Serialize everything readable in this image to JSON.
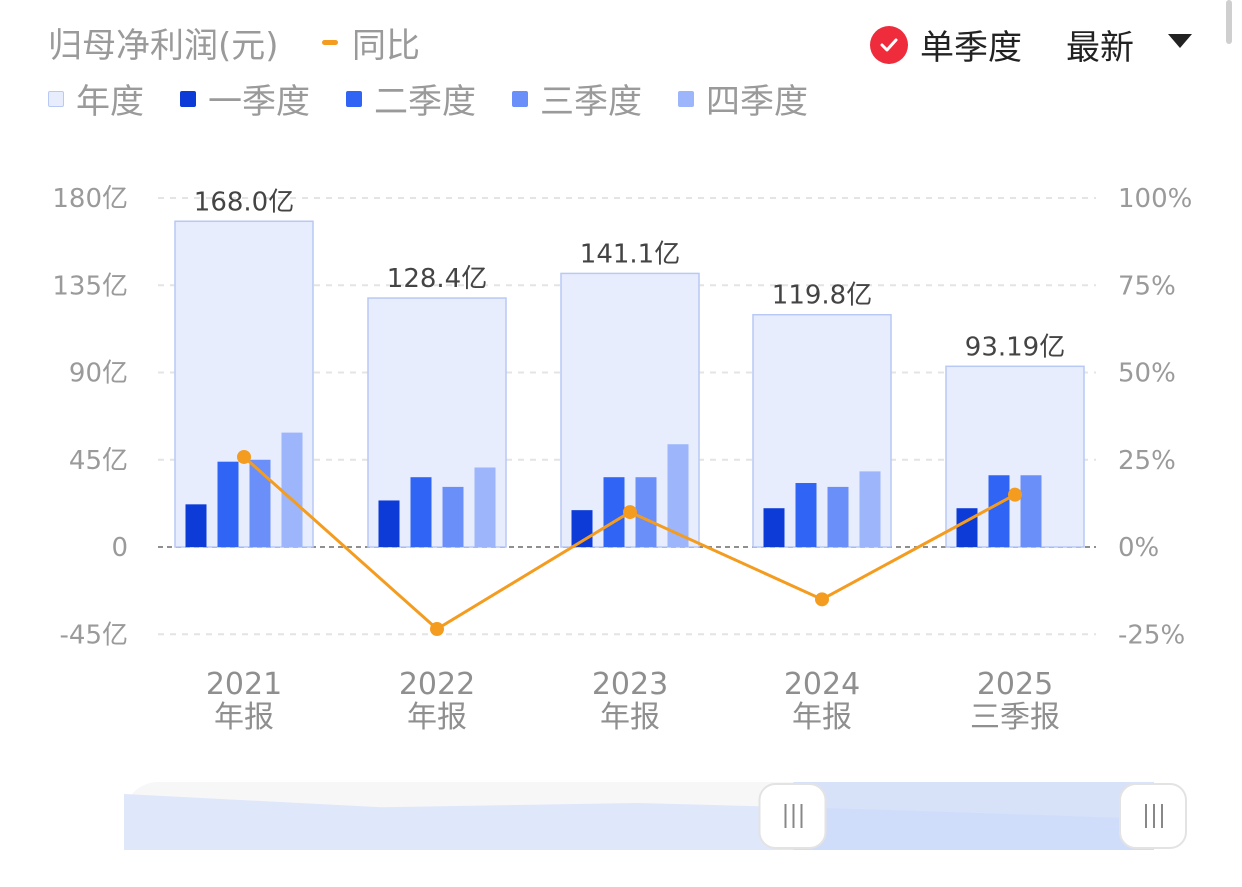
{
  "header": {
    "title": "归母净利润(元)",
    "yoy_label": "同比",
    "single_quarter_label": "单季度",
    "single_quarter_checked": true,
    "period_select": "最新"
  },
  "legend": [
    {
      "label": "年度",
      "color": "#e8edfd"
    },
    {
      "label": "一季度",
      "color": "#0c3bd8"
    },
    {
      "label": "二季度",
      "color": "#2f64f5"
    },
    {
      "label": "三季度",
      "color": "#6a8ff8"
    },
    {
      "label": "四季度",
      "color": "#9cb5fb"
    }
  ],
  "chart_data": {
    "type": "bar",
    "categories": [
      {
        "year": "2021",
        "period": "年报"
      },
      {
        "year": "2022",
        "period": "年报"
      },
      {
        "year": "2023",
        "period": "年报"
      },
      {
        "year": "2024",
        "period": "年报"
      },
      {
        "year": "2025",
        "period": "三季报"
      }
    ],
    "annual": {
      "values": [
        168.0,
        128.4,
        141.1,
        119.8,
        93.19
      ],
      "labels": [
        "168.0亿",
        "128.4亿",
        "141.1亿",
        "119.8亿",
        "93.19亿"
      ]
    },
    "quarters": [
      {
        "name": "一季度",
        "values": [
          22,
          24,
          19,
          20,
          20
        ]
      },
      {
        "name": "二季度",
        "values": [
          44,
          36,
          36,
          33,
          37
        ]
      },
      {
        "name": "三季度",
        "values": [
          45,
          31,
          36,
          31,
          37
        ]
      },
      {
        "name": "四季度",
        "values": [
          59,
          41,
          53,
          39,
          null
        ]
      }
    ],
    "yoy": {
      "name": "同比",
      "values": [
        25.8,
        -23.5,
        10.0,
        -15.0,
        15.0
      ],
      "color": "#f49c1f"
    },
    "y_left": {
      "ticks": [
        180,
        135,
        90,
        45,
        0,
        -45
      ],
      "labels": [
        "180亿",
        "135亿",
        "90亿",
        "45亿",
        "0",
        "-45亿"
      ],
      "range": [
        -45,
        180
      ]
    },
    "y_right": {
      "ticks": [
        100,
        75,
        50,
        25,
        0,
        -25
      ],
      "labels": [
        "100%",
        "75%",
        "50%",
        "25%",
        "0%",
        "-25%"
      ],
      "range": [
        -25,
        100
      ]
    },
    "grid": true,
    "brush_range": [
      0.65,
      1.0
    ]
  }
}
